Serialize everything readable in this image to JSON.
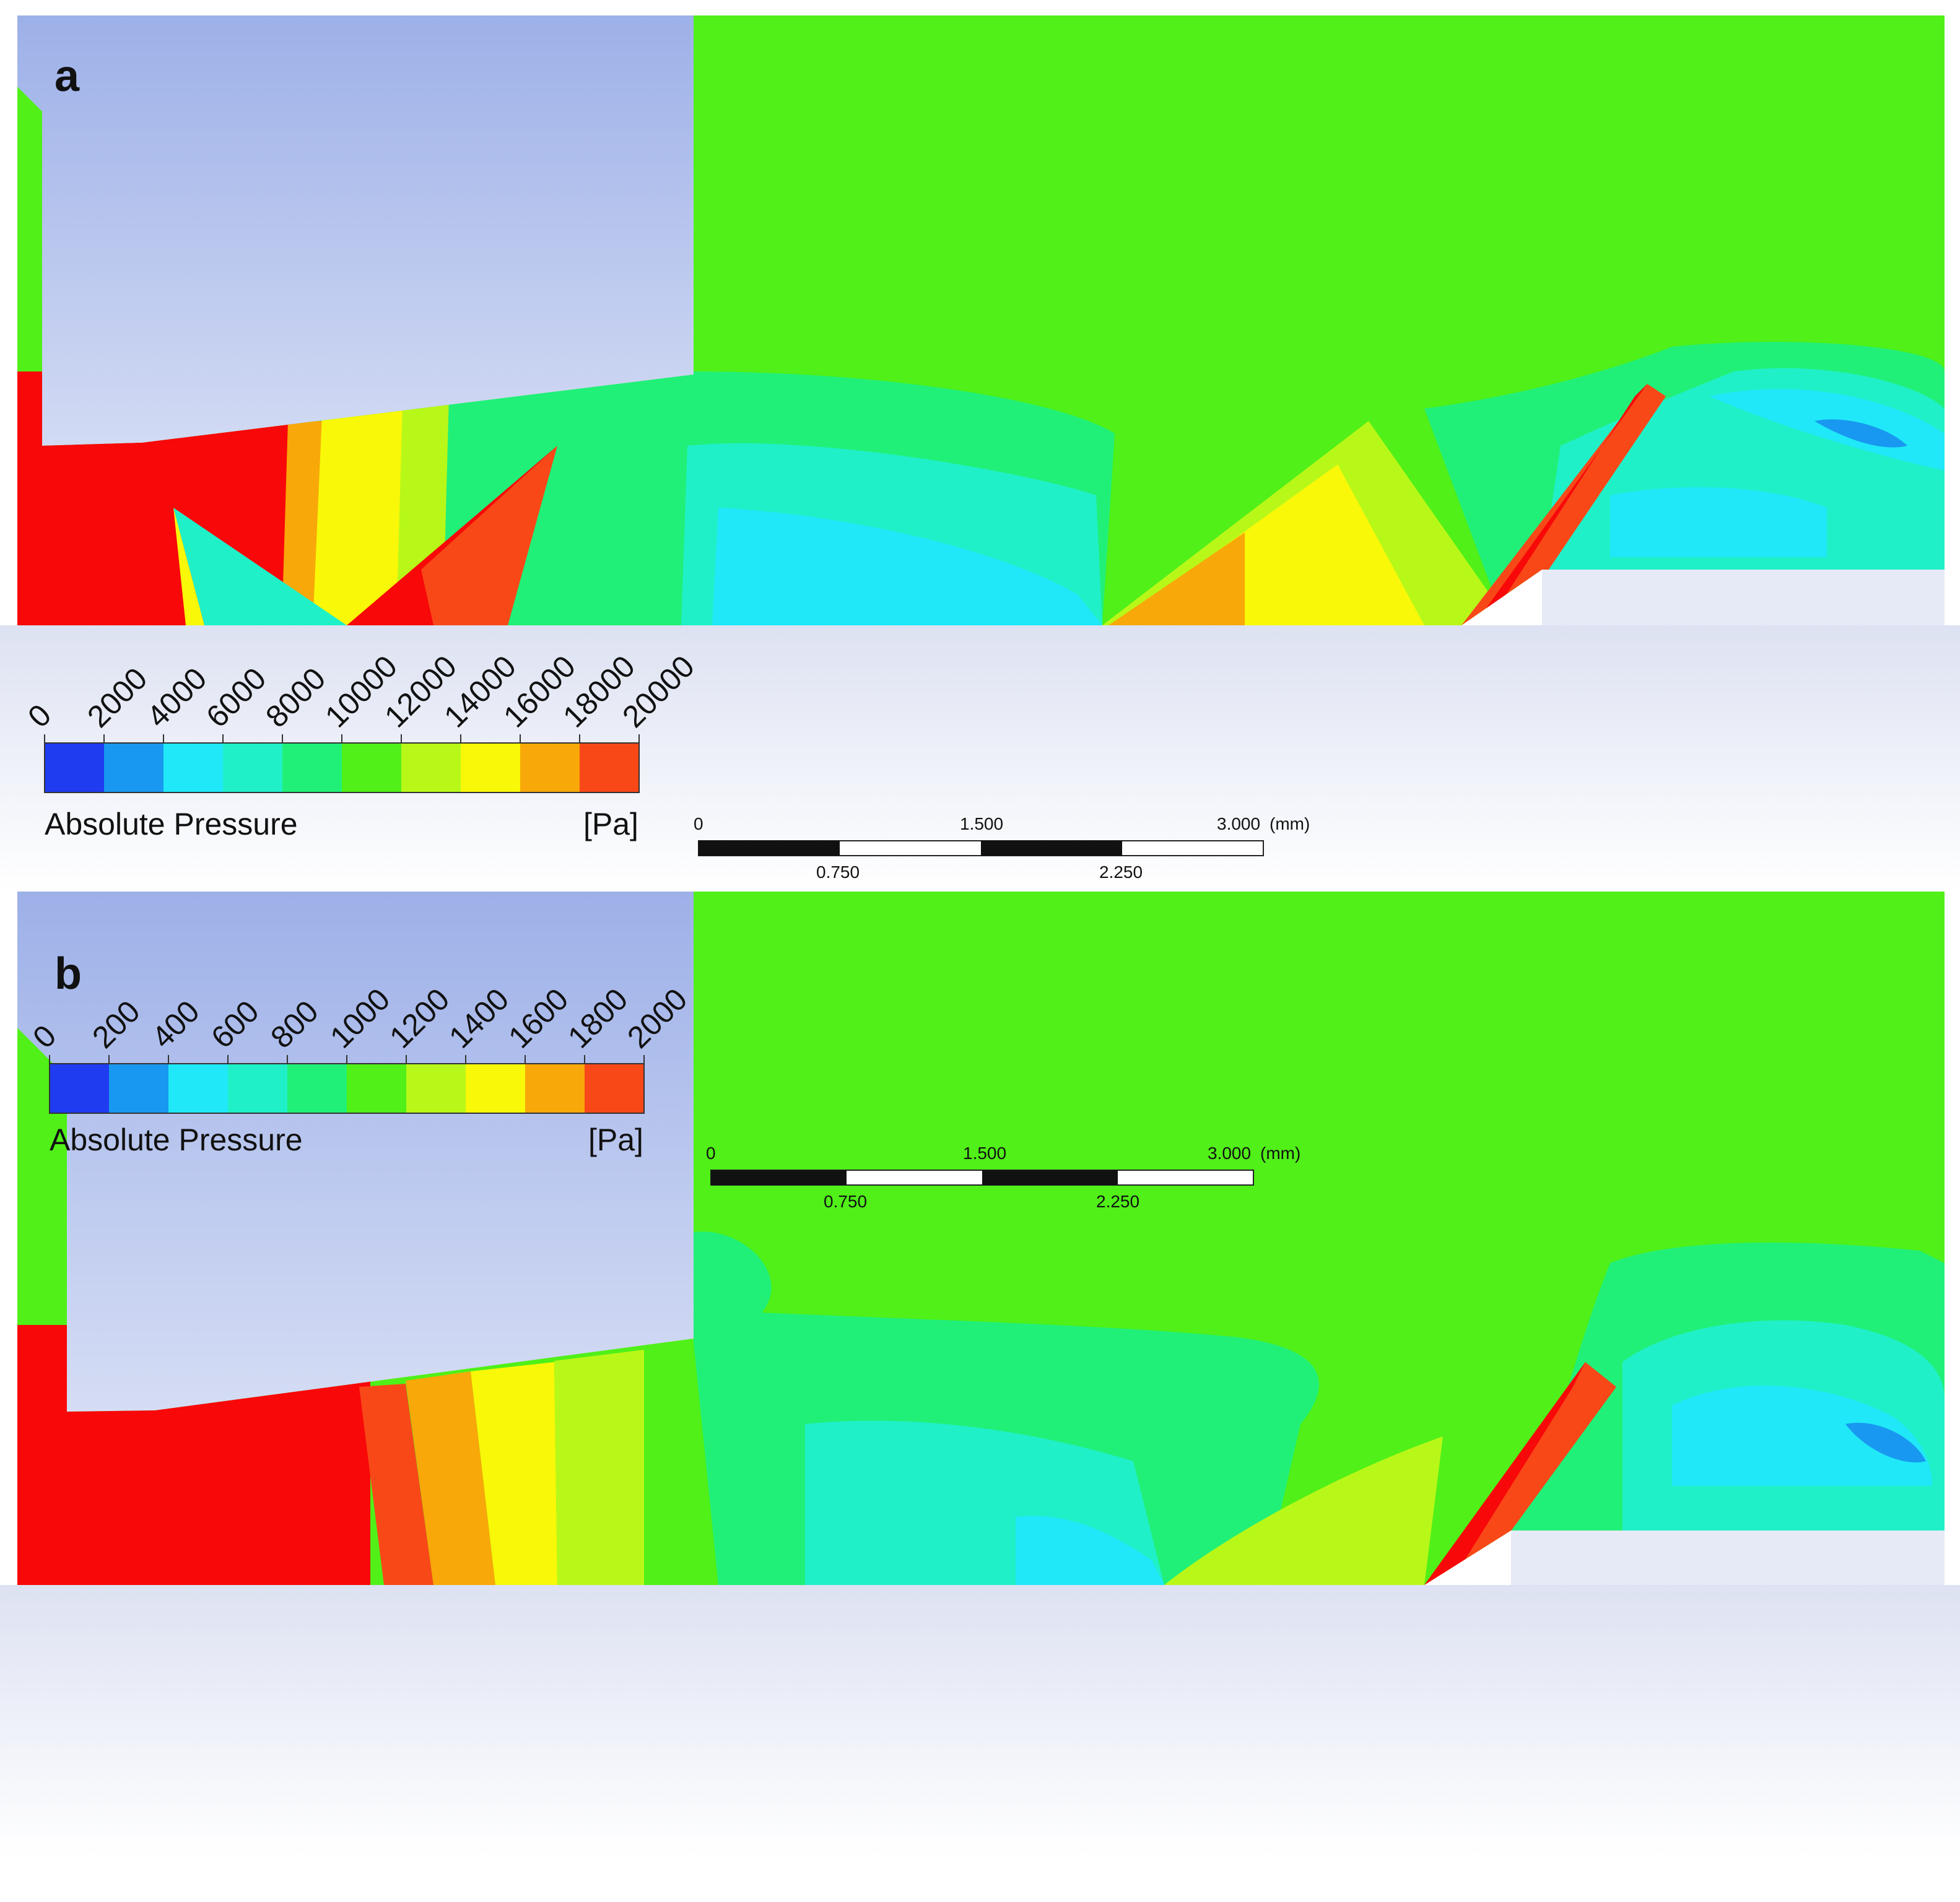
{
  "panels": [
    {
      "label": "a",
      "legend": {
        "title": "Absolute Pressure",
        "unit": "[Pa]",
        "ticks": [
          "0",
          "2000",
          "4000",
          "6000",
          "8000",
          "10000",
          "12000",
          "14000",
          "16000",
          "18000",
          "20000"
        ]
      },
      "scale_bar": {
        "top_labels": [
          "0",
          "1.500",
          "3.000"
        ],
        "unit": "(mm)",
        "bottom_labels": [
          "0.750",
          "2.250"
        ]
      }
    },
    {
      "label": "b",
      "legend": {
        "title": "Absolute Pressure",
        "unit": "[Pa]",
        "ticks": [
          "0",
          "200",
          "400",
          "600",
          "800",
          "1000",
          "1200",
          "1400",
          "1600",
          "1800",
          "2000"
        ]
      },
      "scale_bar": {
        "top_labels": [
          "0",
          "1.500",
          "3.000"
        ],
        "unit": "(mm)",
        "bottom_labels": [
          "0.750",
          "2.250"
        ]
      }
    }
  ],
  "colormap": [
    "#1f3cf0",
    "#1898f0",
    "#20e8f8",
    "#20f0c8",
    "#20f078",
    "#50f018",
    "#b8f818",
    "#f8f808",
    "#f8a808",
    "#f84818"
  ]
}
